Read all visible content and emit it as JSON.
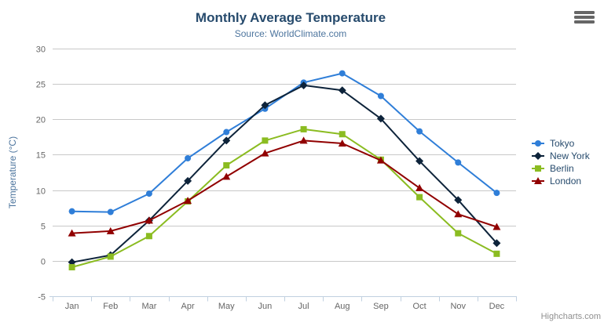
{
  "chart_data": {
    "type": "line",
    "title": "Monthly Average Temperature",
    "subtitle": "Source: WorldClimate.com",
    "xlabel": "",
    "ylabel": "Temperature (°C)",
    "ylim": [
      -5,
      30
    ],
    "ytick_step": 5,
    "grid": true,
    "legend_position": "right",
    "categories": [
      "Jan",
      "Feb",
      "Mar",
      "Apr",
      "May",
      "Jun",
      "Jul",
      "Aug",
      "Sep",
      "Oct",
      "Nov",
      "Dec"
    ],
    "series": [
      {
        "name": "Tokyo",
        "color": "#2f7ed8",
        "marker": "circle",
        "values": [
          7.0,
          6.9,
          9.5,
          14.5,
          18.2,
          21.5,
          25.2,
          26.5,
          23.3,
          18.3,
          13.9,
          9.6
        ]
      },
      {
        "name": "New York",
        "color": "#0d233a",
        "marker": "diamond",
        "values": [
          -0.2,
          0.8,
          5.7,
          11.3,
          17.0,
          22.0,
          24.8,
          24.1,
          20.1,
          14.1,
          8.6,
          2.5
        ]
      },
      {
        "name": "Berlin",
        "color": "#8bbc21",
        "marker": "square",
        "values": [
          -0.9,
          0.6,
          3.5,
          8.4,
          13.5,
          17.0,
          18.6,
          17.9,
          14.3,
          9.0,
          3.9,
          1.0
        ]
      },
      {
        "name": "London",
        "color": "#910000",
        "marker": "triangle",
        "values": [
          3.9,
          4.2,
          5.7,
          8.5,
          11.9,
          15.2,
          17.0,
          16.6,
          14.2,
          10.3,
          6.6,
          4.8
        ]
      }
    ],
    "credits": "Highcharts.com"
  },
  "colors": {
    "title": "#274b6d",
    "subtitle": "#4d759e",
    "axis_title": "#4d759e",
    "tick_label": "#666666",
    "gridline": "#c8c8c8",
    "axis_line": "#c0d0e0",
    "legend_text": "#274b6d",
    "credits_text": "#909090",
    "menu_icon": "#666666"
  },
  "icons": {
    "context_menu": "hamburger-icon"
  }
}
